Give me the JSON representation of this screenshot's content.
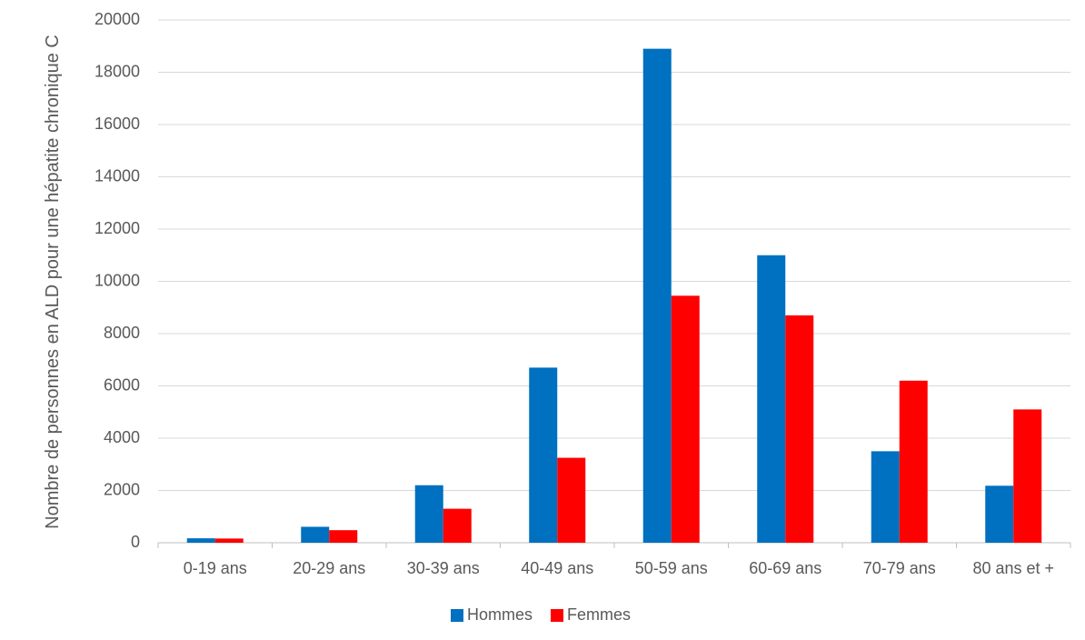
{
  "chart_data": {
    "type": "bar",
    "y_label": "Nombre de personnes en ALD pour une hépatite chronique C",
    "categories": [
      "0-19 ans",
      "20-29 ans",
      "30-39 ans",
      "40-49 ans",
      "50-59 ans",
      "60-69 ans",
      "70-79 ans",
      "80 ans et +"
    ],
    "series": [
      {
        "name": "Hommes",
        "color": "#0070c0",
        "values": [
          170,
          610,
          2200,
          6700,
          18900,
          11000,
          3500,
          2180
        ]
      },
      {
        "name": "Femmes",
        "color": "#ff0000",
        "values": [
          160,
          480,
          1300,
          3250,
          9450,
          8700,
          6200,
          5100
        ]
      }
    ],
    "ylim": [
      0,
      20000
    ],
    "yticks": [
      0,
      2000,
      4000,
      6000,
      8000,
      10000,
      12000,
      14000,
      16000,
      18000,
      20000
    ],
    "grid": true,
    "legend": "bottom"
  }
}
